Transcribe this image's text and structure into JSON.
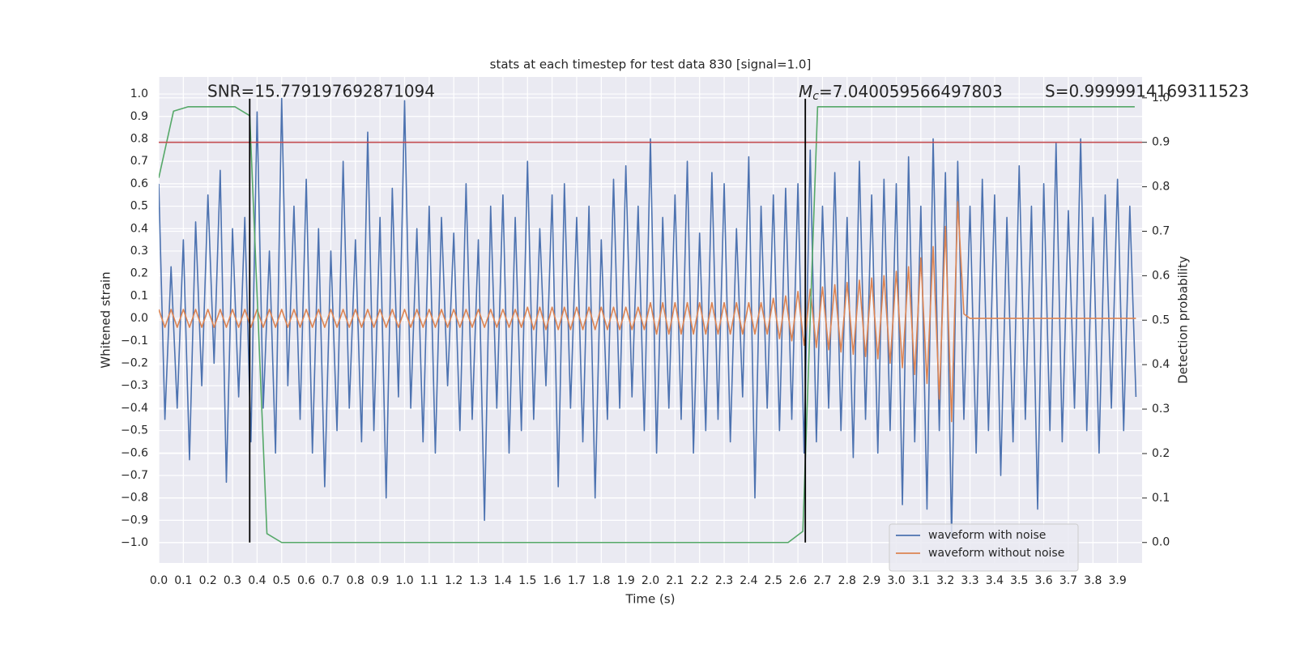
{
  "chart_data": {
    "type": "line",
    "title": "stats at each timestep for test data 830 [signal=1.0]",
    "x_label": "Time (s)",
    "y_label": "Whitened strain",
    "y2_label": "Detection probability",
    "xlim": [
      0,
      4.0
    ],
    "ylim": [
      -1.09,
      1.076
    ],
    "y2lim": [
      -0.046,
      1.047
    ],
    "grid": true,
    "legend": "lower right",
    "xticks": [
      {
        "value": 0,
        "label": "0.0"
      },
      {
        "value": 0.1,
        "label": "0.1"
      },
      {
        "value": 0.2,
        "label": "0.2"
      },
      {
        "value": 0.3,
        "label": "0.3"
      },
      {
        "value": 0.4,
        "label": "0.4"
      },
      {
        "value": 0.5,
        "label": "0.5"
      },
      {
        "value": 0.6,
        "label": "0.6"
      },
      {
        "value": 0.7,
        "label": "0.7"
      },
      {
        "value": 0.8,
        "label": "0.8"
      },
      {
        "value": 0.9,
        "label": "0.9"
      },
      {
        "value": 1,
        "label": "1.0"
      },
      {
        "value": 1.1,
        "label": "1.1"
      },
      {
        "value": 1.2,
        "label": "1.2"
      },
      {
        "value": 1.3,
        "label": "1.3"
      },
      {
        "value": 1.4,
        "label": "1.4"
      },
      {
        "value": 1.5,
        "label": "1.5"
      },
      {
        "value": 1.6,
        "label": "1.6"
      },
      {
        "value": 1.7,
        "label": "1.7"
      },
      {
        "value": 1.8,
        "label": "1.8"
      },
      {
        "value": 1.9,
        "label": "1.9"
      },
      {
        "value": 2,
        "label": "2.0"
      },
      {
        "value": 2.1,
        "label": "2.1"
      },
      {
        "value": 2.2,
        "label": "2.2"
      },
      {
        "value": 2.3,
        "label": "2.3"
      },
      {
        "value": 2.4,
        "label": "2.4"
      },
      {
        "value": 2.5,
        "label": "2.5"
      },
      {
        "value": 2.6,
        "label": "2.6"
      },
      {
        "value": 2.7,
        "label": "2.7"
      },
      {
        "value": 2.8,
        "label": "2.8"
      },
      {
        "value": 2.9,
        "label": "2.9"
      },
      {
        "value": 3,
        "label": "3.0"
      },
      {
        "value": 3.1,
        "label": "3.1"
      },
      {
        "value": 3.2,
        "label": "3.2"
      },
      {
        "value": 3.3,
        "label": "3.3"
      },
      {
        "value": 3.4,
        "label": "3.4"
      },
      {
        "value": 3.5,
        "label": "3.5"
      },
      {
        "value": 3.6,
        "label": "3.6"
      },
      {
        "value": 3.7,
        "label": "3.7"
      },
      {
        "value": 3.8,
        "label": "3.8"
      },
      {
        "value": 3.9,
        "label": "3.9"
      }
    ],
    "yticks": [
      {
        "value": -1,
        "label": "−1.0"
      },
      {
        "value": -0.9,
        "label": "−0.9"
      },
      {
        "value": -0.8,
        "label": "−0.8"
      },
      {
        "value": -0.7,
        "label": "−0.7"
      },
      {
        "value": -0.6,
        "label": "−0.6"
      },
      {
        "value": -0.5,
        "label": "−0.5"
      },
      {
        "value": -0.4,
        "label": "−0.4"
      },
      {
        "value": -0.3,
        "label": "−0.3"
      },
      {
        "value": -0.2,
        "label": "−0.2"
      },
      {
        "value": -0.1,
        "label": "−0.1"
      },
      {
        "value": 0,
        "label": "0.0"
      },
      {
        "value": 0.1,
        "label": "0.1"
      },
      {
        "value": 0.2,
        "label": "0.2"
      },
      {
        "value": 0.3,
        "label": "0.3"
      },
      {
        "value": 0.4,
        "label": "0.4"
      },
      {
        "value": 0.5,
        "label": "0.5"
      },
      {
        "value": 0.6,
        "label": "0.6"
      },
      {
        "value": 0.7,
        "label": "0.7"
      },
      {
        "value": 0.8,
        "label": "0.8"
      },
      {
        "value": 0.9,
        "label": "0.9"
      },
      {
        "value": 1,
        "label": "1.0"
      }
    ],
    "y2ticks": [
      {
        "value": 0,
        "label": "0.0"
      },
      {
        "value": 0.1,
        "label": "0.1"
      },
      {
        "value": 0.2,
        "label": "0.2"
      },
      {
        "value": 0.3,
        "label": "0.3"
      },
      {
        "value": 0.4,
        "label": "0.4"
      },
      {
        "value": 0.5,
        "label": "0.5"
      },
      {
        "value": 0.6,
        "label": "0.6"
      },
      {
        "value": 0.7,
        "label": "0.7"
      },
      {
        "value": 0.8,
        "label": "0.8"
      },
      {
        "value": 0.9,
        "label": "0.9"
      },
      {
        "value": 1,
        "label": "1.0"
      }
    ],
    "x": [
      0,
      0.025,
      0.05,
      0.075,
      0.1,
      0.125,
      0.15,
      0.175,
      0.2,
      0.225,
      0.25,
      0.275,
      0.3,
      0.325,
      0.35,
      0.375,
      0.4,
      0.425,
      0.45,
      0.475,
      0.5,
      0.525,
      0.55,
      0.575,
      0.6,
      0.625,
      0.65,
      0.675,
      0.7,
      0.725,
      0.75,
      0.775,
      0.8,
      0.825,
      0.85,
      0.875,
      0.9,
      0.925,
      0.95,
      0.975,
      1,
      1.025,
      1.05,
      1.075,
      1.1,
      1.125,
      1.15,
      1.175,
      1.2,
      1.225,
      1.25,
      1.275,
      1.3,
      1.325,
      1.35,
      1.375,
      1.4,
      1.425,
      1.45,
      1.475,
      1.5,
      1.525,
      1.55,
      1.575,
      1.6,
      1.625,
      1.65,
      1.675,
      1.7,
      1.725,
      1.75,
      1.775,
      1.8,
      1.825,
      1.85,
      1.875,
      1.9,
      1.925,
      1.95,
      1.975,
      2,
      2.025,
      2.05,
      2.075,
      2.1,
      2.125,
      2.15,
      2.175,
      2.2,
      2.225,
      2.25,
      2.275,
      2.3,
      2.325,
      2.35,
      2.375,
      2.4,
      2.425,
      2.45,
      2.475,
      2.5,
      2.525,
      2.55,
      2.575,
      2.6,
      2.625,
      2.65,
      2.675,
      2.7,
      2.725,
      2.75,
      2.775,
      2.8,
      2.825,
      2.85,
      2.875,
      2.9,
      2.925,
      2.95,
      2.975,
      3,
      3.025,
      3.05,
      3.075,
      3.1,
      3.125,
      3.15,
      3.175,
      3.2,
      3.225,
      3.25,
      3.275,
      3.3,
      3.325,
      3.35,
      3.375,
      3.4,
      3.425,
      3.45,
      3.475,
      3.5,
      3.525,
      3.55,
      3.575,
      3.6,
      3.625,
      3.65,
      3.675,
      3.7,
      3.725,
      3.75,
      3.775,
      3.8,
      3.825,
      3.85,
      3.875,
      3.9,
      3.925,
      3.95,
      3.975
    ],
    "series": [
      {
        "name": "waveform with noise",
        "color": "#4c72b0",
        "values": [
          0.6,
          -0.45,
          0.23,
          -0.4,
          0.35,
          -0.63,
          0.43,
          -0.3,
          0.55,
          -0.2,
          0.66,
          -0.73,
          0.4,
          -0.35,
          0.45,
          -0.55,
          0.92,
          -0.4,
          0.3,
          -0.6,
          0.98,
          -0.3,
          0.5,
          -0.45,
          0.62,
          -0.6,
          0.4,
          -0.75,
          0.3,
          -0.5,
          0.7,
          -0.4,
          0.35,
          -0.55,
          0.83,
          -0.5,
          0.45,
          -0.8,
          0.58,
          -0.35,
          0.97,
          -0.4,
          0.4,
          -0.55,
          0.5,
          -0.6,
          0.45,
          -0.3,
          0.38,
          -0.5,
          0.6,
          -0.45,
          0.35,
          -0.9,
          0.5,
          -0.4,
          0.55,
          -0.6,
          0.45,
          -0.5,
          0.7,
          -0.45,
          0.4,
          -0.3,
          0.55,
          -0.75,
          0.6,
          -0.4,
          0.45,
          -0.55,
          0.5,
          -0.8,
          0.35,
          -0.45,
          0.62,
          -0.4,
          0.68,
          -0.35,
          0.5,
          -0.5,
          0.8,
          -0.6,
          0.45,
          -0.4,
          0.55,
          -0.45,
          0.7,
          -0.6,
          0.38,
          -0.5,
          0.65,
          -0.45,
          0.6,
          -0.55,
          0.4,
          -0.35,
          0.72,
          -0.8,
          0.5,
          -0.4,
          0.55,
          -0.5,
          0.58,
          -0.45,
          0.6,
          -0.6,
          0.75,
          -0.55,
          0.5,
          -0.4,
          0.65,
          -0.5,
          0.45,
          -0.62,
          0.7,
          -0.45,
          0.55,
          -0.6,
          0.62,
          -0.5,
          0.6,
          -0.83,
          0.72,
          -0.55,
          0.5,
          -0.85,
          0.8,
          -0.5,
          0.65,
          -0.98,
          0.7,
          -0.45,
          0.5,
          -0.6,
          0.62,
          -0.5,
          0.55,
          -0.7,
          0.45,
          -0.55,
          0.68,
          -0.45,
          0.5,
          -0.85,
          0.6,
          -0.5,
          0.78,
          -0.55,
          0.48,
          -0.4,
          0.8,
          -0.5,
          0.45,
          -0.6,
          0.55,
          -0.4,
          0.62,
          -0.5,
          0.5,
          -0.35
        ]
      },
      {
        "name": "waveform without noise",
        "color": "#dd8452",
        "values": [
          0.04,
          -0.04,
          0.04,
          -0.04,
          0.04,
          -0.04,
          0.04,
          -0.04,
          0.04,
          -0.04,
          0.04,
          -0.04,
          0.04,
          -0.04,
          0.04,
          -0.04,
          0.04,
          -0.04,
          0.04,
          -0.04,
          0.04,
          -0.04,
          0.04,
          -0.04,
          0.04,
          -0.04,
          0.04,
          -0.04,
          0.04,
          -0.04,
          0.04,
          -0.04,
          0.04,
          -0.04,
          0.04,
          -0.04,
          0.04,
          -0.04,
          0.04,
          -0.04,
          0.04,
          -0.04,
          0.04,
          -0.04,
          0.04,
          -0.04,
          0.04,
          -0.04,
          0.04,
          -0.04,
          0.04,
          -0.04,
          0.04,
          -0.04,
          0.04,
          -0.04,
          0.04,
          -0.04,
          0.04,
          -0.04,
          0.05,
          -0.05,
          0.05,
          -0.05,
          0.05,
          -0.05,
          0.05,
          -0.05,
          0.05,
          -0.05,
          0.05,
          -0.05,
          0.05,
          -0.05,
          0.05,
          -0.05,
          0.05,
          -0.05,
          0.05,
          -0.05,
          0.07,
          -0.07,
          0.07,
          -0.07,
          0.07,
          -0.07,
          0.07,
          -0.07,
          0.07,
          -0.07,
          0.07,
          -0.07,
          0.07,
          -0.07,
          0.07,
          -0.07,
          0.07,
          -0.07,
          0.07,
          -0.07,
          0.09,
          -0.09,
          0.1,
          -0.1,
          0.12,
          -0.12,
          0.13,
          -0.13,
          0.14,
          -0.14,
          0.15,
          -0.15,
          0.16,
          -0.16,
          0.17,
          -0.17,
          0.18,
          -0.18,
          0.19,
          -0.2,
          0.21,
          -0.22,
          0.23,
          -0.25,
          0.27,
          -0.29,
          0.32,
          -0.36,
          0.41,
          -0.46,
          0.52,
          0.02,
          0,
          0,
          0,
          0,
          0,
          0,
          0,
          0,
          0,
          0,
          0,
          0,
          0,
          0,
          0,
          0,
          0,
          0,
          0,
          0,
          0,
          0,
          0,
          0,
          0,
          0,
          0,
          0
        ]
      },
      {
        "color": "#55a868",
        "axis": "y2",
        "x": [
          0,
          0.06,
          0.12,
          0.25,
          0.31,
          0.37,
          0.44,
          0.5,
          2.56,
          2.62,
          2.68,
          3.97
        ],
        "values": [
          0.82,
          0.97,
          0.98,
          0.98,
          0.98,
          0.96,
          0.02,
          0,
          0,
          0.025,
          0.98,
          0.98
        ]
      }
    ],
    "hlines": [
      {
        "axis": "y2",
        "value": 0.9,
        "color": "#c44e52"
      }
    ],
    "vlines": {
      "x": [
        0.37,
        2.63
      ],
      "y2span": [
        0,
        0.998
      ],
      "color": "#000000"
    },
    "annotations": {
      "snr": "SNR=15.779197692871094",
      "mc_symbol": "M",
      "mc_subscript": "c",
      "mc_value": "=7.040059566497803",
      "s": "S=0.9999914169311523"
    }
  }
}
